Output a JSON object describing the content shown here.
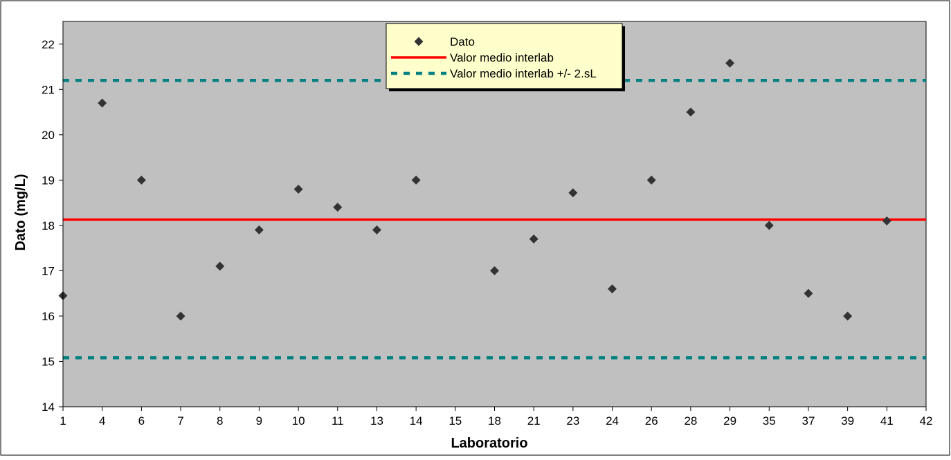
{
  "chart_data": {
    "type": "scatter",
    "xlabel": "Laboratorio",
    "ylabel": "Dato (mg/L)",
    "categories": [
      "1",
      "4",
      "6",
      "7",
      "8",
      "9",
      "10",
      "11",
      "13",
      "14",
      "15",
      "18",
      "21",
      "23",
      "24",
      "26",
      "28",
      "29",
      "35",
      "37",
      "39",
      "41",
      "42"
    ],
    "ylim": [
      14,
      22.5
    ],
    "yticks": [
      14,
      15,
      16,
      17,
      18,
      19,
      20,
      21,
      22
    ],
    "grid": false,
    "legend_position": "top-center",
    "series": [
      {
        "name": "Dato",
        "kind": "points",
        "color": "#333333",
        "marker": "diamond",
        "points": [
          {
            "x": "1",
            "y": 16.45
          },
          {
            "x": "4",
            "y": 20.7
          },
          {
            "x": "6",
            "y": 19.0
          },
          {
            "x": "7",
            "y": 16.0
          },
          {
            "x": "8",
            "y": 17.1
          },
          {
            "x": "9",
            "y": 17.9
          },
          {
            "x": "10",
            "y": 18.8
          },
          {
            "x": "11",
            "y": 18.4
          },
          {
            "x": "13",
            "y": 17.9
          },
          {
            "x": "14",
            "y": 19.0
          },
          {
            "x": "18",
            "y": 17.0
          },
          {
            "x": "21",
            "y": 17.7
          },
          {
            "x": "23",
            "y": 18.72
          },
          {
            "x": "24",
            "y": 16.6
          },
          {
            "x": "26",
            "y": 19.0
          },
          {
            "x": "28",
            "y": 20.5
          },
          {
            "x": "29",
            "y": 21.58
          },
          {
            "x": "35",
            "y": 18.0
          },
          {
            "x": "37",
            "y": 16.5
          },
          {
            "x": "39",
            "y": 16.0
          },
          {
            "x": "41",
            "y": 18.1
          }
        ]
      },
      {
        "name": "Valor medio interlab",
        "kind": "hline",
        "color": "#ff0000",
        "y": 18.13
      },
      {
        "name": "Valor medio interlab +/- 2.sL",
        "kind": "hline-pair",
        "color": "#008080",
        "dash": true,
        "y_values": [
          21.2,
          15.08
        ]
      }
    ],
    "colors": {
      "plot_background": "#c0c0c0",
      "legend_background": "#ffffcc"
    }
  }
}
